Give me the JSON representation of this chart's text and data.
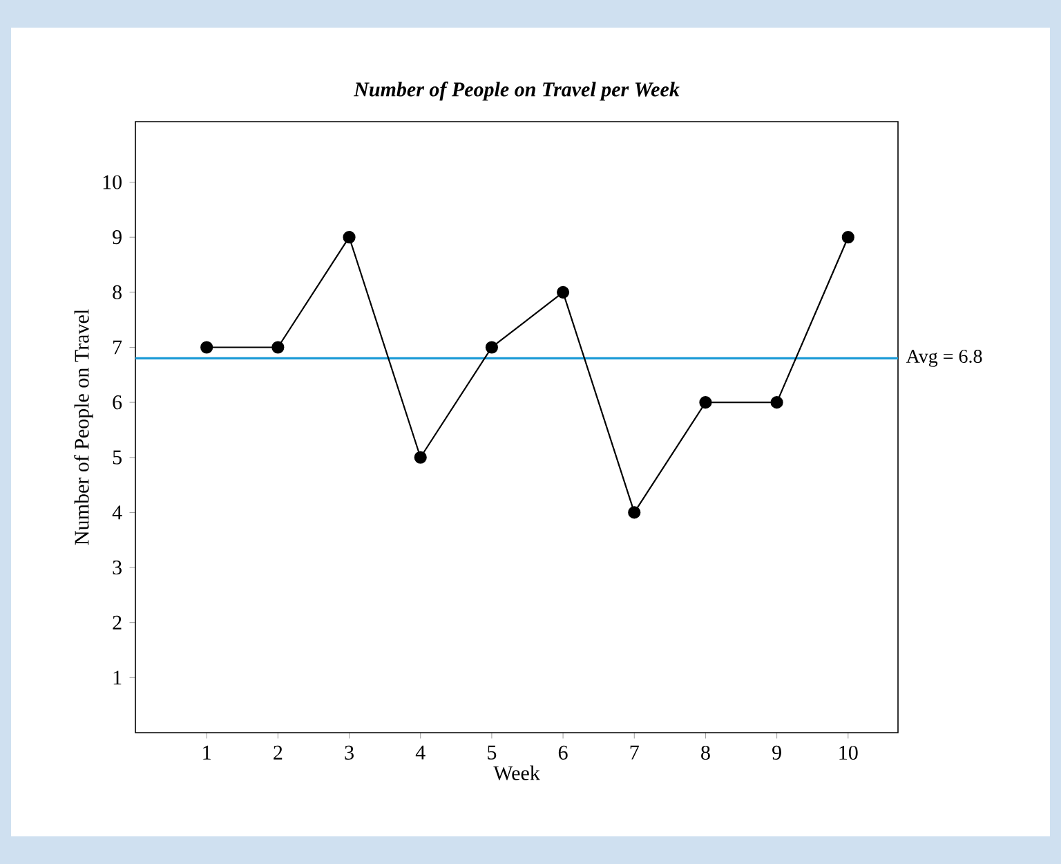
{
  "chart_data": {
    "type": "line",
    "title": "Number of People on Travel per Week",
    "xlabel": "Week",
    "ylabel": "Number of People on Travel",
    "x": [
      1,
      2,
      3,
      4,
      5,
      6,
      7,
      8,
      9,
      10
    ],
    "series": [
      {
        "color": "#000000",
        "values": [
          7,
          7,
          9,
          5,
          7,
          8,
          4,
          6,
          6,
          9
        ]
      }
    ],
    "xlim": [
      0,
      10.7
    ],
    "ylim": [
      0,
      11.1
    ],
    "xticks": [
      1,
      2,
      3,
      4,
      5,
      6,
      7,
      8,
      9,
      10
    ],
    "yticks": [
      1,
      2,
      3,
      4,
      5,
      6,
      7,
      8,
      9,
      10
    ],
    "ref_lines": [
      {
        "axis": "y",
        "value": 6.8,
        "label": "Avg = 6.8",
        "color": "#1a9ad6"
      }
    ],
    "marker": "circle",
    "line_style": "solid"
  }
}
